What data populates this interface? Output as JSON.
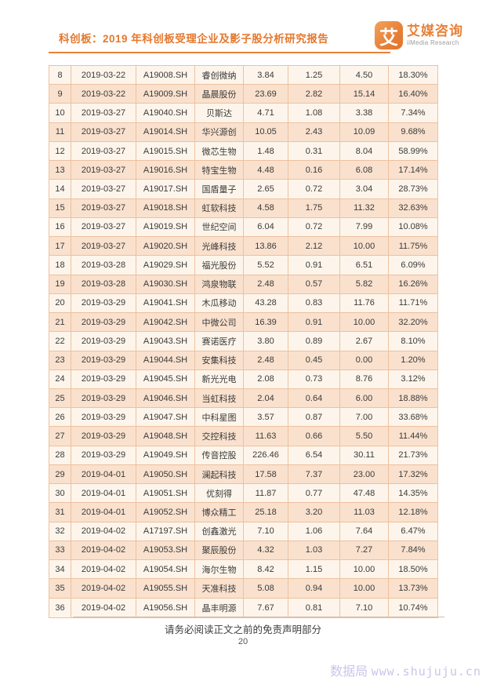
{
  "header": {
    "title": "科创板：2019 年科创板受理企业及影子股分析研究报告",
    "logo": {
      "icon_glyph": "艾",
      "brand_cn": "艾媒咨询",
      "brand_en": "iiMedia Research"
    }
  },
  "table": {
    "rows": [
      [
        "8",
        "2019-03-22",
        "A19008.SH",
        "睿创微纳",
        "3.84",
        "1.25",
        "4.50",
        "18.30%"
      ],
      [
        "9",
        "2019-03-22",
        "A19009.SH",
        "晶晨股份",
        "23.69",
        "2.82",
        "15.14",
        "16.40%"
      ],
      [
        "10",
        "2019-03-27",
        "A19040.SH",
        "贝斯达",
        "4.71",
        "1.08",
        "3.38",
        "7.34%"
      ],
      [
        "11",
        "2019-03-27",
        "A19014.SH",
        "华兴源创",
        "10.05",
        "2.43",
        "10.09",
        "9.68%"
      ],
      [
        "12",
        "2019-03-27",
        "A19015.SH",
        "微芯生物",
        "1.48",
        "0.31",
        "8.04",
        "58.99%"
      ],
      [
        "13",
        "2019-03-27",
        "A19016.SH",
        "特宝生物",
        "4.48",
        "0.16",
        "6.08",
        "17.14%"
      ],
      [
        "14",
        "2019-03-27",
        "A19017.SH",
        "国盾量子",
        "2.65",
        "0.72",
        "3.04",
        "28.73%"
      ],
      [
        "15",
        "2019-03-27",
        "A19018.SH",
        "虹软科技",
        "4.58",
        "1.75",
        "11.32",
        "32.63%"
      ],
      [
        "16",
        "2019-03-27",
        "A19019.SH",
        "世纪空间",
        "6.04",
        "0.72",
        "7.99",
        "10.08%"
      ],
      [
        "17",
        "2019-03-27",
        "A19020.SH",
        "光峰科技",
        "13.86",
        "2.12",
        "10.00",
        "11.75%"
      ],
      [
        "18",
        "2019-03-28",
        "A19029.SH",
        "福光股份",
        "5.52",
        "0.91",
        "6.51",
        "6.09%"
      ],
      [
        "19",
        "2019-03-28",
        "A19030.SH",
        "鸿泉物联",
        "2.48",
        "0.57",
        "5.82",
        "16.26%"
      ],
      [
        "20",
        "2019-03-29",
        "A19041.SH",
        "木瓜移动",
        "43.28",
        "0.83",
        "11.76",
        "11.71%"
      ],
      [
        "21",
        "2019-03-29",
        "A19042.SH",
        "中微公司",
        "16.39",
        "0.91",
        "10.00",
        "32.20%"
      ],
      [
        "22",
        "2019-03-29",
        "A19043.SH",
        "赛诺医疗",
        "3.80",
        "0.89",
        "2.67",
        "8.10%"
      ],
      [
        "23",
        "2019-03-29",
        "A19044.SH",
        "安集科技",
        "2.48",
        "0.45",
        "0.00",
        "1.20%"
      ],
      [
        "24",
        "2019-03-29",
        "A19045.SH",
        "新光光电",
        "2.08",
        "0.73",
        "8.76",
        "3.12%"
      ],
      [
        "25",
        "2019-03-29",
        "A19046.SH",
        "当虹科技",
        "2.04",
        "0.64",
        "6.00",
        "18.88%"
      ],
      [
        "26",
        "2019-03-29",
        "A19047.SH",
        "中科星图",
        "3.57",
        "0.87",
        "7.00",
        "33.68%"
      ],
      [
        "27",
        "2019-03-29",
        "A19048.SH",
        "交控科技",
        "11.63",
        "0.66",
        "5.50",
        "11.44%"
      ],
      [
        "28",
        "2019-03-29",
        "A19049.SH",
        "传音控股",
        "226.46",
        "6.54",
        "30.11",
        "21.73%"
      ],
      [
        "29",
        "2019-04-01",
        "A19050.SH",
        "澜起科技",
        "17.58",
        "7.37",
        "23.00",
        "17.32%"
      ],
      [
        "30",
        "2019-04-01",
        "A19051.SH",
        "优刻得",
        "11.87",
        "0.77",
        "47.48",
        "14.35%"
      ],
      [
        "31",
        "2019-04-01",
        "A19052.SH",
        "博众精工",
        "25.18",
        "3.20",
        "11.03",
        "12.18%"
      ],
      [
        "32",
        "2019-04-02",
        "A17197.SH",
        "创鑫激光",
        "7.10",
        "1.06",
        "7.64",
        "6.47%"
      ],
      [
        "33",
        "2019-04-02",
        "A19053.SH",
        "聚辰股份",
        "4.32",
        "1.03",
        "7.27",
        "7.84%"
      ],
      [
        "34",
        "2019-04-02",
        "A19054.SH",
        "海尔生物",
        "8.42",
        "1.15",
        "10.00",
        "18.50%"
      ],
      [
        "35",
        "2019-04-02",
        "A19055.SH",
        "天准科技",
        "5.08",
        "0.94",
        "10.00",
        "13.73%"
      ],
      [
        "36",
        "2019-04-02",
        "A19056.SH",
        "晶丰明源",
        "7.67",
        "0.81",
        "7.10",
        "10.74%"
      ]
    ]
  },
  "footer": {
    "disclaimer": "请务必阅读正文之前的免责声明部分",
    "page_number": "20",
    "watermark_cn": "数据局",
    "watermark_url": "www.shujuju.cn"
  },
  "colors": {
    "accent_orange": "#e4782e",
    "row_light": "#fdf5eb",
    "row_peach": "#f9e1ce",
    "table_border": "#eec19e",
    "watermark": "#c9c5e8"
  }
}
